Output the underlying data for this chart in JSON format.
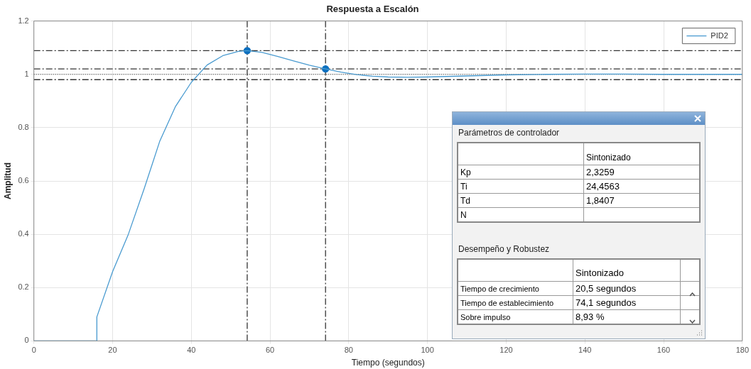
{
  "chart_data": [
    {
      "type": "line",
      "title": "Respuesta a Escalón",
      "xlabel": "Tiempo (segundos)",
      "ylabel": "Amplitud",
      "xlim": [
        0,
        180
      ],
      "xticks": [
        0,
        20,
        40,
        60,
        80,
        100,
        120,
        140,
        160,
        180
      ],
      "ylim": [
        0,
        1.2
      ],
      "yticks": [
        0,
        0.2,
        0.4,
        0.6,
        0.8,
        1,
        1.2
      ],
      "grid": true,
      "legend": "top right",
      "series": [
        {
          "name": "PID2",
          "type": "line",
          "color": "#4a9bd0",
          "marker": "none",
          "x": [
            0,
            16,
            16,
            20,
            24,
            28,
            30,
            32,
            36,
            40,
            44,
            48,
            52,
            54.2,
            58,
            62,
            66,
            70,
            74.1,
            78,
            82,
            86,
            90,
            95,
            100,
            110,
            120,
            130,
            140,
            150,
            160,
            170,
            180
          ],
          "values": [
            0,
            0,
            0.09,
            0.26,
            0.4,
            0.57,
            0.66,
            0.75,
            0.88,
            0.97,
            1.035,
            1.07,
            1.086,
            1.089,
            1.082,
            1.067,
            1.05,
            1.034,
            1.02,
            1.008,
            0.999,
            0.993,
            0.99,
            0.989,
            0.99,
            0.994,
            0.998,
            1,
            1.001,
            1.001,
            1,
            1,
            1
          ]
        },
        {
          "type": "scatter",
          "color": "#0b6fbf",
          "marker": "circle",
          "x": [
            54.2,
            74.1
          ],
          "values": [
            1.089,
            1.02
          ]
        }
      ],
      "ref_lines": [
        {
          "axis": "y",
          "value": 1.089,
          "color": "#333333",
          "line_style": "dashed"
        },
        {
          "axis": "y",
          "value": 1.02,
          "color": "#333333",
          "line_style": "dashed"
        },
        {
          "axis": "y",
          "value": 1,
          "color": "#666666",
          "line_style": "dotted"
        },
        {
          "axis": "y",
          "value": 0.98,
          "color": "#333333",
          "line_style": "dashed"
        },
        {
          "axis": "x",
          "value": 54.2,
          "color": "#333333",
          "line_style": "dashed"
        },
        {
          "axis": "x",
          "value": 74.1,
          "color": "#333333",
          "line_style": "dashed"
        }
      ]
    },
    {
      "type": "other",
      "annotations": [
        "Parámetros de controlador",
        "Sintonizado",
        "Kp",
        "2,3259",
        "Ti",
        "24,4563",
        "Td",
        "1,8407",
        "N",
        "Desempeño y Robustez",
        "Sintonizado",
        "Tiempo de crecimiento",
        "20,5 segundos",
        "Tiempo de establecimiento",
        "74,1 segundos",
        "Sobre impulso",
        "8,93 %"
      ]
    }
  ]
}
